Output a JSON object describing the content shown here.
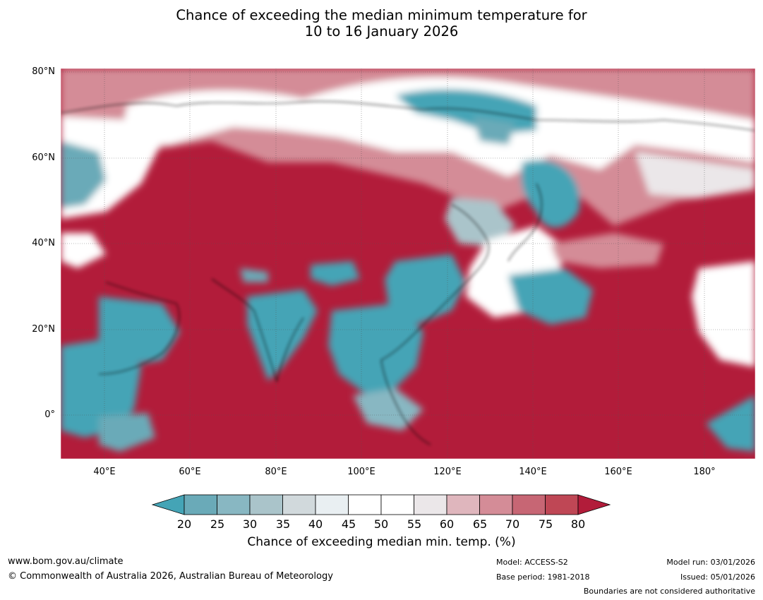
{
  "title": {
    "line1": "Chance of exceeding the median minimum temperature for",
    "line2": "10 to 16 January 2026"
  },
  "map": {
    "region": "Asia",
    "lat_range": [
      -10,
      80
    ],
    "lon_range": [
      30,
      192
    ],
    "lat_ticks": [
      "80°N",
      "60°N",
      "40°N",
      "20°N",
      "0°"
    ],
    "lon_ticks": [
      "40°E",
      "60°E",
      "80°E",
      "100°E",
      "120°E",
      "140°E",
      "160°E",
      "180°"
    ],
    "grid": true,
    "colors": {
      "low": "#44a4b6",
      "high": "#b21c3a"
    }
  },
  "colorbar": {
    "ticks": [
      "20",
      "25",
      "30",
      "35",
      "40",
      "45",
      "50",
      "55",
      "60",
      "65",
      "70",
      "75",
      "80"
    ],
    "colors": [
      "#6aaab8",
      "#88b7c2",
      "#aac4ca",
      "#d1d9dc",
      "#e9eff2",
      "#ffffff",
      "#ffffff",
      "#ebe7e9",
      "#dfb6bd",
      "#d48c97",
      "#c76674",
      "#bf4755"
    ],
    "under_color": "#44a4b6",
    "over_color": "#b21c3a",
    "label": "Chance of exceeding median min. temp. (%)"
  },
  "footer": {
    "website": "www.bom.gov.au/climate",
    "copyright": "© Commonwealth of Australia 2026, Australian Bureau of Meteorology",
    "model": "Model: ACCESS-S2",
    "base_period": "Base period: 1981-2018",
    "model_run": "Model run: 03/01/2026",
    "issued": "Issued: 05/01/2026",
    "disclaimer": "Boundaries are not considered authoritative"
  }
}
